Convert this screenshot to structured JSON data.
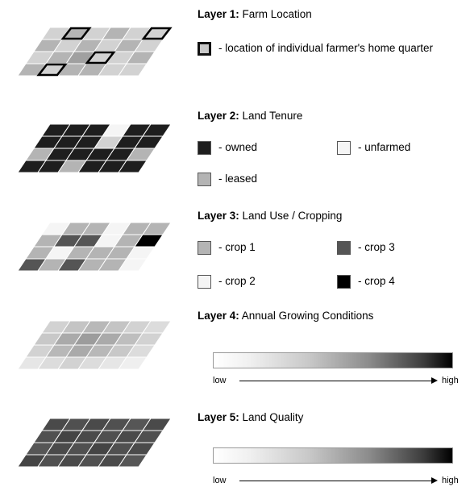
{
  "layers": [
    {
      "title_bold": "Layer 1:",
      "title_rest": " Farm Location"
    },
    {
      "title_bold": "Layer 2:",
      "title_rest": " Land Tenure"
    },
    {
      "title_bold": "Layer 3:",
      "title_rest": " Land Use / Cropping"
    },
    {
      "title_bold": "Layer 4:",
      "title_rest": " Annual Growing Conditions"
    },
    {
      "title_bold": "Layer 5:",
      "title_rest": " Land Quality"
    }
  ],
  "legend": {
    "home_quarter": "- location of individual farmer's home quarter",
    "owned": "- owned",
    "unfarmed": "- unfarmed",
    "leased": "- leased",
    "crop1": "- crop 1",
    "crop3": "- crop 3",
    "crop2": "- crop 2",
    "crop4": "- crop 4"
  },
  "scales": [
    {
      "low": "low",
      "high": "high"
    },
    {
      "low": "low",
      "high": "high"
    }
  ],
  "colors": {
    "light_gray": "#d2d2d2",
    "mid_gray": "#b4b4b4",
    "dark_gray": "#555555",
    "near_black": "#1e1e1e",
    "white_ish": "#f5f5f5",
    "black": "#000000"
  },
  "grids": [
    {
      "name": "farm-location-grid",
      "cells": [
        [
          "#d2d2d2",
          "#b4b4b4",
          "#d2d2d2",
          "#b4b4b4",
          "#d2d2d2",
          "#d2d2d2"
        ],
        [
          "#b4b4b4",
          "#d2d2d2",
          "#b4b4b4",
          "#d2d2d2",
          "#b4b4b4",
          "#d2d2d2"
        ],
        [
          "#d2d2d2",
          "#b4b4b4",
          "#a0a0a0",
          "#d2d2d2",
          "#d2d2d2",
          "#b4b4b4"
        ],
        [
          "#b4b4b4",
          "#d2d2d2",
          "#b4b4b4",
          "#b4b4b4",
          "#d2d2d2",
          "#d2d2d2"
        ]
      ],
      "highlight": [
        [
          0,
          1
        ],
        [
          0,
          5
        ],
        [
          2,
          3
        ],
        [
          3,
          1
        ]
      ]
    },
    {
      "name": "land-tenure-grid",
      "cells": [
        [
          "#1e1e1e",
          "#1e1e1e",
          "#1e1e1e",
          "#f5f5f5",
          "#1e1e1e",
          "#1e1e1e"
        ],
        [
          "#1e1e1e",
          "#1e1e1e",
          "#1e1e1e",
          "#d2d2d2",
          "#1e1e1e",
          "#1e1e1e"
        ],
        [
          "#b4b4b4",
          "#1e1e1e",
          "#1e1e1e",
          "#1e1e1e",
          "#1e1e1e",
          "#b4b4b4"
        ],
        [
          "#1e1e1e",
          "#1e1e1e",
          "#b4b4b4",
          "#1e1e1e",
          "#1e1e1e",
          "#1e1e1e"
        ]
      ],
      "highlight": []
    },
    {
      "name": "land-use-grid",
      "cells": [
        [
          "#f5f5f5",
          "#b4b4b4",
          "#b4b4b4",
          "#f5f5f5",
          "#b4b4b4",
          "#b4b4b4"
        ],
        [
          "#b4b4b4",
          "#555555",
          "#555555",
          "#f5f5f5",
          "#b4b4b4",
          "#000000"
        ],
        [
          "#b4b4b4",
          "#f5f5f5",
          "#b4b4b4",
          "#b4b4b4",
          "#b4b4b4",
          "#f5f5f5"
        ],
        [
          "#555555",
          "#b4b4b4",
          "#555555",
          "#b4b4b4",
          "#b4b4b4",
          "#f5f5f5"
        ]
      ],
      "highlight": []
    },
    {
      "name": "growing-conditions-grid",
      "cells": [
        [
          "#d2d2d2",
          "#c4c4c4",
          "#b8b8b8",
          "#c4c4c4",
          "#d2d2d2",
          "#dcdcdc"
        ],
        [
          "#c8c8c8",
          "#aaaaaa",
          "#9c9c9c",
          "#aaaaaa",
          "#bebebe",
          "#d2d2d2"
        ],
        [
          "#d2d2d2",
          "#b8b8b8",
          "#aaaaaa",
          "#b8b8b8",
          "#c8c8c8",
          "#dcdcdc"
        ],
        [
          "#e6e6e6",
          "#dcdcdc",
          "#d2d2d2",
          "#dcdcdc",
          "#e6e6e6",
          "#efefef"
        ]
      ],
      "highlight": []
    },
    {
      "name": "land-quality-grid",
      "cells": [
        [
          "#4a4a4a",
          "#505050",
          "#4a4a4a",
          "#505050",
          "#565656",
          "#4a4a4a"
        ],
        [
          "#505050",
          "#444444",
          "#4a4a4a",
          "#505050",
          "#4a4a4a",
          "#505050"
        ],
        [
          "#565656",
          "#4a4a4a",
          "#505050",
          "#444444",
          "#505050",
          "#4a4a4a"
        ],
        [
          "#444444",
          "#505050",
          "#4a4a4a",
          "#505050",
          "#4a4a4a",
          "#565656"
        ]
      ],
      "highlight": []
    }
  ]
}
